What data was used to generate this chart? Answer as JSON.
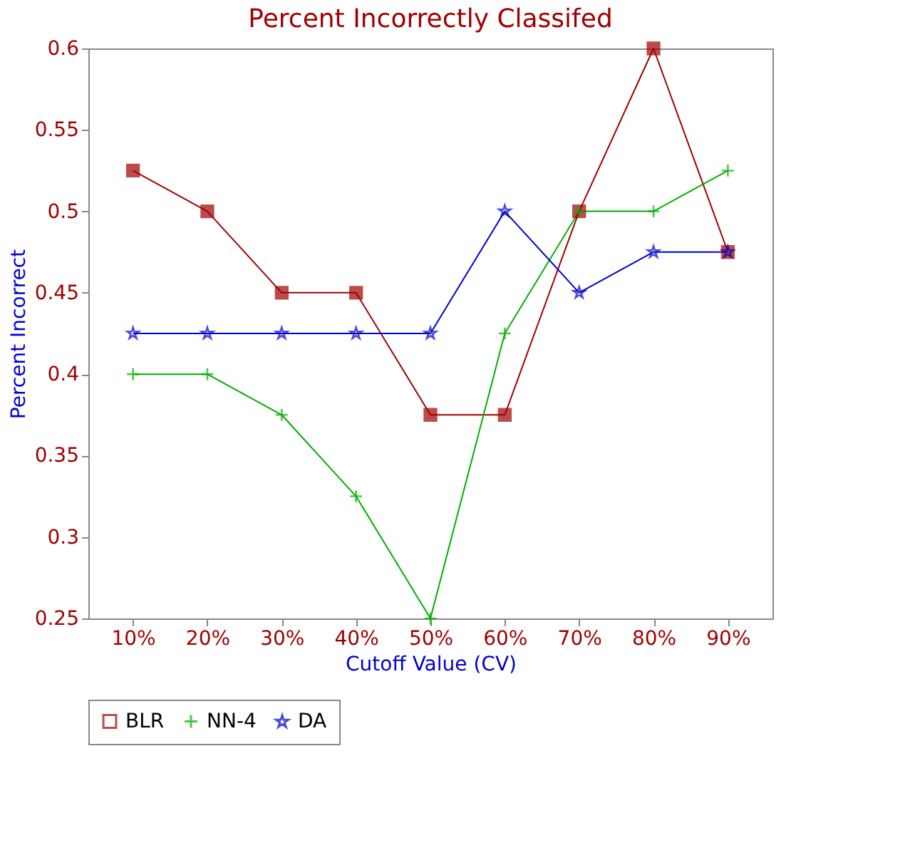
{
  "chart_data": {
    "type": "line",
    "title": "Percent Incorrectly Classifed",
    "xlabel": "Cutoff Value (CV)",
    "ylabel": "Percent Incorrect",
    "categories": [
      "10%",
      "20%",
      "30%",
      "40%",
      "50%",
      "60%",
      "70%",
      "80%",
      "90%"
    ],
    "series": [
      {
        "name": "BLR",
        "color": "#a00000",
        "marker": "square",
        "values": [
          0.525,
          0.5,
          0.45,
          0.45,
          0.375,
          0.375,
          0.5,
          0.6,
          0.475
        ]
      },
      {
        "name": "NN-4",
        "color": "#00b000",
        "marker": "cross",
        "values": [
          0.4,
          0.4,
          0.375,
          0.325,
          0.25,
          0.425,
          0.5,
          0.5,
          0.525
        ]
      },
      {
        "name": "DA",
        "color": "#0000cc",
        "marker": "star",
        "values": [
          0.425,
          0.425,
          0.425,
          0.425,
          0.425,
          0.5,
          0.45,
          0.475,
          0.475
        ]
      }
    ],
    "ylim": [
      0.25,
      0.6
    ],
    "yticks": [
      0.25,
      0.3,
      0.35,
      0.4,
      0.45,
      0.5,
      0.55,
      0.6
    ],
    "grid": false,
    "legend": "bottom",
    "line_style": "solid"
  }
}
